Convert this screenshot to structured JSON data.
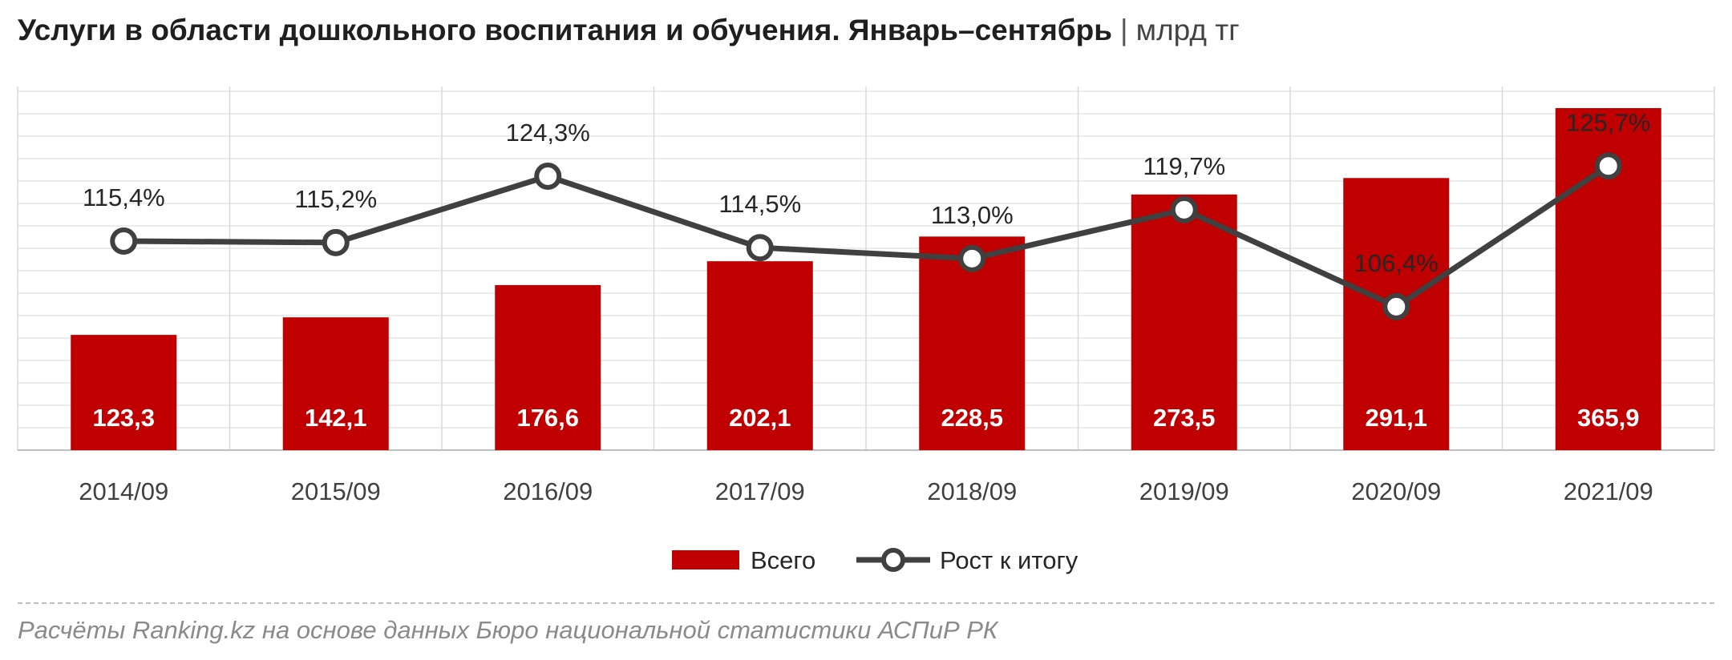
{
  "title": {
    "main": "Услуги в области дошкольного воспитания и обучения. Январь–сентябрь",
    "separator": "|",
    "unit": "млрд тг"
  },
  "source": "Расчёты Ranking.kz на основе данных Бюро национальной статистики АСПиР РК",
  "colors": {
    "bar": "#c00000",
    "line": "#404040",
    "grid": "#d9d9d9",
    "marker_fill": "#ffffff"
  },
  "chart_data": {
    "type": "bar",
    "categories": [
      "2014/09",
      "2015/09",
      "2016/09",
      "2017/09",
      "2018/09",
      "2019/09",
      "2020/09",
      "2021/09"
    ],
    "series": [
      {
        "name": "Всего",
        "kind": "bar",
        "axis": "primary",
        "values": [
          123.3,
          142.1,
          176.6,
          202.1,
          228.5,
          273.5,
          291.1,
          365.9
        ],
        "labels": [
          "123,3",
          "142,1",
          "176,6",
          "202,1",
          "228,5",
          "273,5",
          "291,1",
          "365,9"
        ]
      },
      {
        "name": "Рост к итогу",
        "kind": "line",
        "axis": "secondary",
        "values": [
          115.4,
          115.2,
          124.3,
          114.5,
          113.0,
          119.7,
          106.4,
          125.7
        ],
        "labels": [
          "115,4%",
          "115,2%",
          "124,3%",
          "114,5%",
          "113,0%",
          "119,7%",
          "106,4%",
          "125,7%"
        ]
      }
    ],
    "legend": "bottom",
    "grid": true
  }
}
